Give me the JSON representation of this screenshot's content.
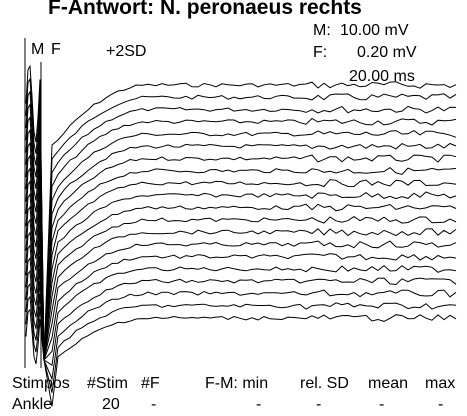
{
  "title": "F-Antwort: N. peronaeus rechts",
  "markers": {
    "m_label": "M",
    "f_label": "F",
    "sd_label": "+2SD"
  },
  "scale": {
    "m_label": "M:",
    "m_value": "10.00 mV",
    "f_label": "F:",
    "f_value": "0.20 mV",
    "time_value": "20.00 ms"
  },
  "table": {
    "headers": [
      "Stimpos",
      "#Stim",
      "#F",
      "F-M: min",
      "rel. SD",
      "mean",
      "max"
    ],
    "row": [
      "Ankle",
      "20",
      "-",
      "-",
      "-",
      "-",
      "-"
    ]
  },
  "chart_data": {
    "type": "line",
    "title": "F-Antwort: N. peronaeus rechts",
    "xlabel": "",
    "ylabel": "",
    "x_unit": "ms (20.00 ms/div)",
    "traces": 20,
    "stacked": true,
    "trace_baselines_top_to_bottom": [
      1,
      2,
      3,
      4,
      5,
      6,
      7,
      8,
      9,
      10,
      11,
      12,
      13,
      14,
      15,
      16,
      17,
      18,
      19,
      20
    ],
    "grid": false,
    "legend": "none",
    "line_color": "#000000"
  }
}
